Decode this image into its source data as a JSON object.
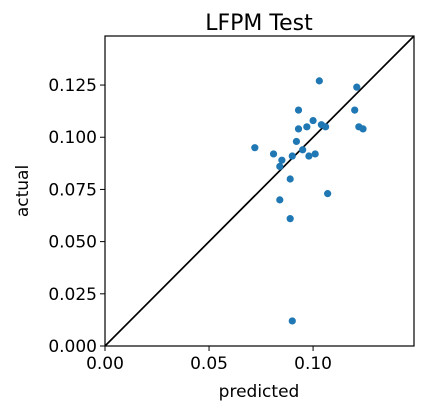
{
  "chart_data": {
    "type": "scatter",
    "title": "LFPM Test",
    "xlabel": "predicted",
    "ylabel": "actual",
    "xlim": [
      0,
      0.1485
    ],
    "ylim": [
      0,
      0.1485
    ],
    "xticks": [
      0.0,
      0.05,
      0.1
    ],
    "xtick_labels": [
      "0.00",
      "0.05",
      "0.10"
    ],
    "yticks": [
      0.0,
      0.025,
      0.05,
      0.075,
      0.1,
      0.125
    ],
    "ytick_labels": [
      "0.000",
      "0.025",
      "0.050",
      "0.075",
      "0.100",
      "0.125"
    ],
    "grid": false,
    "reference_line": "y = x",
    "marker_color": "#1f77b4",
    "line_color": "#000000",
    "points": [
      {
        "x": 0.072,
        "y": 0.095
      },
      {
        "x": 0.081,
        "y": 0.092
      },
      {
        "x": 0.084,
        "y": 0.086
      },
      {
        "x": 0.085,
        "y": 0.089
      },
      {
        "x": 0.084,
        "y": 0.07
      },
      {
        "x": 0.089,
        "y": 0.08
      },
      {
        "x": 0.089,
        "y": 0.061
      },
      {
        "x": 0.09,
        "y": 0.091
      },
      {
        "x": 0.09,
        "y": 0.012
      },
      {
        "x": 0.092,
        "y": 0.098
      },
      {
        "x": 0.093,
        "y": 0.113
      },
      {
        "x": 0.093,
        "y": 0.104
      },
      {
        "x": 0.095,
        "y": 0.094
      },
      {
        "x": 0.097,
        "y": 0.105
      },
      {
        "x": 0.098,
        "y": 0.091
      },
      {
        "x": 0.1,
        "y": 0.108
      },
      {
        "x": 0.101,
        "y": 0.092
      },
      {
        "x": 0.103,
        "y": 0.127
      },
      {
        "x": 0.104,
        "y": 0.106
      },
      {
        "x": 0.106,
        "y": 0.105
      },
      {
        "x": 0.107,
        "y": 0.073
      },
      {
        "x": 0.12,
        "y": 0.113
      },
      {
        "x": 0.121,
        "y": 0.124
      },
      {
        "x": 0.122,
        "y": 0.105
      },
      {
        "x": 0.124,
        "y": 0.104
      }
    ]
  }
}
